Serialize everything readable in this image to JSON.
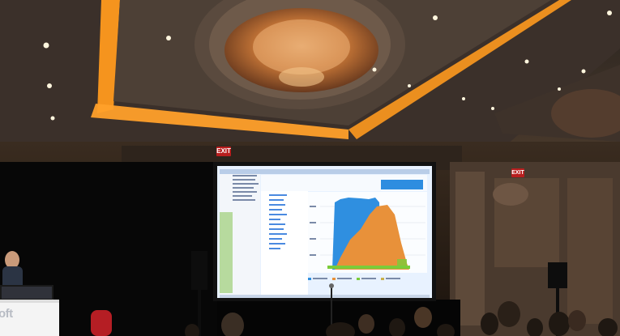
{
  "scene": {
    "exit_sign_left": "EXIT",
    "exit_sign_right": "EXIT",
    "podium_text": "oft"
  },
  "colors": {
    "ceiling_glow": "#ff9a1e",
    "ceiling_dark": "#3a2a1e",
    "chandelier": "#d8894a",
    "screen_bg": "#e8f2ff",
    "chart_blue": "#2f8fe0",
    "chart_orange": "#e8913a",
    "chart_green": "#7acc3a",
    "stage_black": "#050505"
  },
  "icons": [
    "chandelier",
    "recessed-light",
    "exit-sign",
    "projection-screen",
    "speaker",
    "microphone",
    "podium",
    "presenter",
    "audience"
  ]
}
